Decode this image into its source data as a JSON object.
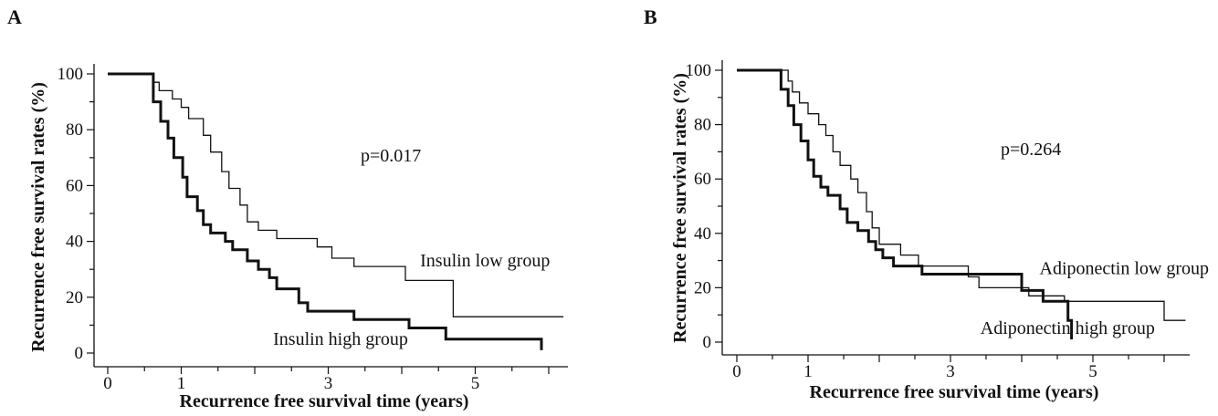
{
  "chart_data": [
    {
      "panel": "A",
      "type": "line",
      "xlabel": "Recurrence free survival time (years)",
      "ylabel": "Recurrence free survival rates (%)",
      "xlim": [
        0,
        6.3
      ],
      "ylim": [
        0,
        100
      ],
      "xticks": [
        0,
        1,
        3,
        5
      ],
      "yticks": [
        0,
        20,
        40,
        60,
        80,
        100
      ],
      "p_value": "p=0.017",
      "series": [
        {
          "name": "Insulin low group",
          "style": "thin",
          "color": "#111111",
          "points": [
            [
              0,
              100
            ],
            [
              0.62,
              100
            ],
            [
              0.62,
              97
            ],
            [
              0.7,
              97
            ],
            [
              0.7,
              94
            ],
            [
              0.88,
              94
            ],
            [
              0.88,
              91
            ],
            [
              1.0,
              91
            ],
            [
              1.0,
              88
            ],
            [
              1.1,
              88
            ],
            [
              1.1,
              84
            ],
            [
              1.3,
              84
            ],
            [
              1.3,
              78
            ],
            [
              1.4,
              78
            ],
            [
              1.4,
              72
            ],
            [
              1.55,
              72
            ],
            [
              1.55,
              65
            ],
            [
              1.65,
              65
            ],
            [
              1.65,
              59
            ],
            [
              1.8,
              59
            ],
            [
              1.8,
              53
            ],
            [
              1.9,
              53
            ],
            [
              1.9,
              47
            ],
            [
              2.05,
              47
            ],
            [
              2.05,
              44
            ],
            [
              2.3,
              44
            ],
            [
              2.3,
              41
            ],
            [
              2.85,
              41
            ],
            [
              2.85,
              38
            ],
            [
              3.05,
              38
            ],
            [
              3.05,
              34
            ],
            [
              3.35,
              34
            ],
            [
              3.35,
              31
            ],
            [
              4.05,
              31
            ],
            [
              4.05,
              26
            ],
            [
              4.7,
              26
            ],
            [
              4.7,
              13
            ],
            [
              6.2,
              13
            ]
          ],
          "label_anchor": [
            4.25,
            31
          ]
        },
        {
          "name": "Insulin high group",
          "style": "thick",
          "color": "#111111",
          "points": [
            [
              0,
              100
            ],
            [
              0.62,
              100
            ],
            [
              0.62,
              90
            ],
            [
              0.72,
              90
            ],
            [
              0.72,
              83
            ],
            [
              0.82,
              83
            ],
            [
              0.82,
              77
            ],
            [
              0.9,
              77
            ],
            [
              0.9,
              70
            ],
            [
              1.02,
              70
            ],
            [
              1.02,
              63
            ],
            [
              1.08,
              63
            ],
            [
              1.08,
              56
            ],
            [
              1.22,
              56
            ],
            [
              1.22,
              51
            ],
            [
              1.3,
              51
            ],
            [
              1.3,
              46
            ],
            [
              1.4,
              46
            ],
            [
              1.4,
              43
            ],
            [
              1.6,
              43
            ],
            [
              1.6,
              40
            ],
            [
              1.7,
              40
            ],
            [
              1.7,
              37
            ],
            [
              1.9,
              37
            ],
            [
              1.9,
              33
            ],
            [
              2.05,
              33
            ],
            [
              2.05,
              30
            ],
            [
              2.2,
              30
            ],
            [
              2.2,
              27
            ],
            [
              2.3,
              27
            ],
            [
              2.3,
              23
            ],
            [
              2.6,
              23
            ],
            [
              2.6,
              18
            ],
            [
              2.72,
              18
            ],
            [
              2.72,
              15
            ],
            [
              3.35,
              15
            ],
            [
              3.35,
              12
            ],
            [
              4.1,
              12
            ],
            [
              4.1,
              9
            ],
            [
              4.6,
              9
            ],
            [
              4.6,
              5
            ],
            [
              5.9,
              5
            ],
            [
              5.9,
              1
            ]
          ],
          "label_anchor": [
            2.25,
            3
          ]
        }
      ]
    },
    {
      "panel": "B",
      "type": "line",
      "xlabel": "Recurrence free survival time (years)",
      "ylabel": "Recurrence free survival rates (%)",
      "xlim": [
        0,
        6.3
      ],
      "ylim": [
        0,
        100
      ],
      "xticks": [
        0,
        1,
        3,
        5
      ],
      "yticks": [
        0,
        20,
        40,
        60,
        80,
        100
      ],
      "p_value": "p=0.264",
      "series": [
        {
          "name": "Adiponectin low group",
          "style": "thin",
          "color": "#111111",
          "points": [
            [
              0,
              100
            ],
            [
              0.72,
              100
            ],
            [
              0.72,
              96
            ],
            [
              0.78,
              96
            ],
            [
              0.78,
              92
            ],
            [
              0.88,
              92
            ],
            [
              0.88,
              88
            ],
            [
              1.0,
              88
            ],
            [
              1.0,
              84
            ],
            [
              1.15,
              84
            ],
            [
              1.15,
              80
            ],
            [
              1.25,
              80
            ],
            [
              1.25,
              76
            ],
            [
              1.35,
              76
            ],
            [
              1.35,
              70
            ],
            [
              1.45,
              70
            ],
            [
              1.45,
              65
            ],
            [
              1.6,
              65
            ],
            [
              1.6,
              60
            ],
            [
              1.7,
              60
            ],
            [
              1.7,
              55
            ],
            [
              1.82,
              55
            ],
            [
              1.82,
              48
            ],
            [
              1.9,
              48
            ],
            [
              1.9,
              42
            ],
            [
              2.0,
              42
            ],
            [
              2.0,
              36
            ],
            [
              2.3,
              36
            ],
            [
              2.3,
              32
            ],
            [
              2.55,
              32
            ],
            [
              2.55,
              28
            ],
            [
              3.25,
              28
            ],
            [
              3.25,
              24
            ],
            [
              3.4,
              24
            ],
            [
              3.4,
              20
            ],
            [
              4.1,
              20
            ],
            [
              4.1,
              17
            ],
            [
              4.6,
              17
            ],
            [
              4.6,
              15
            ],
            [
              6.0,
              15
            ],
            [
              6.0,
              8
            ],
            [
              6.3,
              8
            ]
          ],
          "label_anchor": [
            4.25,
            25
          ]
        },
        {
          "name": "Adiponectin high group",
          "style": "thick",
          "color": "#111111",
          "points": [
            [
              0,
              100
            ],
            [
              0.62,
              100
            ],
            [
              0.62,
              93
            ],
            [
              0.72,
              93
            ],
            [
              0.72,
              87
            ],
            [
              0.8,
              87
            ],
            [
              0.8,
              80
            ],
            [
              0.9,
              80
            ],
            [
              0.9,
              74
            ],
            [
              1.0,
              74
            ],
            [
              1.0,
              67
            ],
            [
              1.08,
              67
            ],
            [
              1.08,
              61
            ],
            [
              1.18,
              61
            ],
            [
              1.18,
              57
            ],
            [
              1.28,
              57
            ],
            [
              1.28,
              54
            ],
            [
              1.45,
              54
            ],
            [
              1.45,
              49
            ],
            [
              1.55,
              49
            ],
            [
              1.55,
              44
            ],
            [
              1.7,
              44
            ],
            [
              1.7,
              41
            ],
            [
              1.85,
              41
            ],
            [
              1.85,
              37
            ],
            [
              1.95,
              37
            ],
            [
              1.95,
              34
            ],
            [
              2.05,
              34
            ],
            [
              2.05,
              31
            ],
            [
              2.2,
              31
            ],
            [
              2.2,
              28
            ],
            [
              2.6,
              28
            ],
            [
              2.6,
              25
            ],
            [
              4.0,
              25
            ],
            [
              4.0,
              19
            ],
            [
              4.3,
              19
            ],
            [
              4.3,
              15
            ],
            [
              4.65,
              15
            ],
            [
              4.65,
              8
            ],
            [
              4.7,
              8
            ],
            [
              4.7,
              1
            ]
          ],
          "label_anchor": [
            3.42,
            3
          ]
        }
      ]
    }
  ]
}
